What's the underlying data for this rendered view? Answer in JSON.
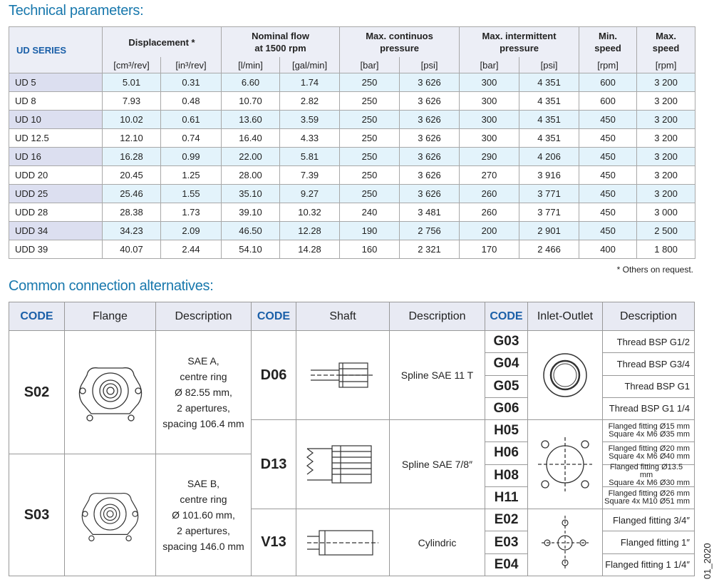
{
  "technical": {
    "title": "Technical parameters:",
    "series_header": "UD SERIES",
    "groups": [
      [
        "Displacement *"
      ],
      [
        "Nominal flow",
        "at 1500 rpm"
      ],
      [
        "Max. continuos",
        "pressure"
      ],
      [
        "Max. intermittent",
        "pressure"
      ],
      [
        "Min.",
        "speed"
      ],
      [
        "Max.",
        "speed"
      ]
    ],
    "units": [
      "[cm³/rev]",
      "[in³/rev]",
      "[l/min]",
      "[gal/min]",
      "[bar]",
      "[psi]",
      "[bar]",
      "[psi]",
      "[rpm]",
      "[rpm]"
    ],
    "rows": [
      [
        "UD 5",
        "5.01",
        "0.31",
        "6.60",
        "1.74",
        "250",
        "3 626",
        "300",
        "4 351",
        "600",
        "3 200"
      ],
      [
        "UD 8",
        "7.93",
        "0.48",
        "10.70",
        "2.82",
        "250",
        "3 626",
        "300",
        "4 351",
        "600",
        "3 200"
      ],
      [
        "UD 10",
        "10.02",
        "0.61",
        "13.60",
        "3.59",
        "250",
        "3 626",
        "300",
        "4 351",
        "450",
        "3 200"
      ],
      [
        "UD 12.5",
        "12.10",
        "0.74",
        "16.40",
        "4.33",
        "250",
        "3 626",
        "300",
        "4 351",
        "450",
        "3 200"
      ],
      [
        "UD 16",
        "16.28",
        "0.99",
        "22.00",
        "5.81",
        "250",
        "3 626",
        "290",
        "4 206",
        "450",
        "3 200"
      ],
      [
        "UDD 20",
        "20.45",
        "1.25",
        "28.00",
        "7.39",
        "250",
        "3 626",
        "270",
        "3 916",
        "450",
        "3 200"
      ],
      [
        "UDD 25",
        "25.46",
        "1.55",
        "35.10",
        "9.27",
        "250",
        "3 626",
        "260",
        "3 771",
        "450",
        "3 200"
      ],
      [
        "UDD 28",
        "28.38",
        "1.73",
        "39.10",
        "10.32",
        "240",
        "3 481",
        "260",
        "3 771",
        "450",
        "3 000"
      ],
      [
        "UDD 34",
        "34.23",
        "2.09",
        "46.50",
        "12.28",
        "190",
        "2 756",
        "200",
        "2 901",
        "450",
        "2 500"
      ],
      [
        "UDD 39",
        "40.07",
        "2.44",
        "54.10",
        "14.28",
        "160",
        "2 321",
        "170",
        "2 466",
        "400",
        "1 800"
      ]
    ],
    "note": "* Others on request."
  },
  "connections": {
    "title": "Common connection alternatives:",
    "headers": [
      "CODE",
      "Flange",
      "Description",
      "CODE",
      "Shaft",
      "Description",
      "CODE",
      "Inlet-Outlet",
      "Description"
    ],
    "flanges": [
      {
        "code": "S02",
        "description": [
          "SAE A,",
          "centre ring",
          "Ø 82.55 mm,",
          "2 apertures,",
          "spacing 106.4 mm"
        ]
      },
      {
        "code": "S03",
        "description": [
          "SAE B,",
          "centre ring",
          "Ø 101.60 mm,",
          "2 apertures,",
          "spacing 146.0 mm"
        ]
      }
    ],
    "shafts": [
      {
        "code": "D06",
        "description": "Spline SAE 11 T"
      },
      {
        "code": "D13",
        "description": "Spline SAE 7/8″"
      },
      {
        "code": "V13",
        "description": "Cylindric"
      }
    ],
    "ports": [
      {
        "code": "G03",
        "description": [
          "Thread BSP G1/2"
        ]
      },
      {
        "code": "G04",
        "description": [
          "Thread BSP G3/4"
        ]
      },
      {
        "code": "G05",
        "description": [
          "Thread BSP G1"
        ]
      },
      {
        "code": "G06",
        "description": [
          "Thread BSP G1 1/4"
        ]
      },
      {
        "code": "H05",
        "description": [
          "Flanged fitting Ø15 mm",
          "Square 4x M6 Ø35 mm"
        ]
      },
      {
        "code": "H06",
        "description": [
          "Flanged fitting Ø20 mm",
          "Square 4x M6 Ø40 mm"
        ]
      },
      {
        "code": "H08",
        "description": [
          "Flanged fitting Ø13.5 mm",
          "Square 4x M6 Ø30 mm"
        ]
      },
      {
        "code": "H11",
        "description": [
          "Flanged fitting Ø26 mm",
          "Square 4x M10 Ø51 mm"
        ]
      },
      {
        "code": "E02",
        "description": [
          "Flanged fitting 3/4″"
        ]
      },
      {
        "code": "E03",
        "description": [
          "Flanged fitting 1″"
        ]
      },
      {
        "code": "E04",
        "description": [
          "Flanged fitting 1 1/4″"
        ]
      }
    ]
  },
  "side_label": "01_2020"
}
